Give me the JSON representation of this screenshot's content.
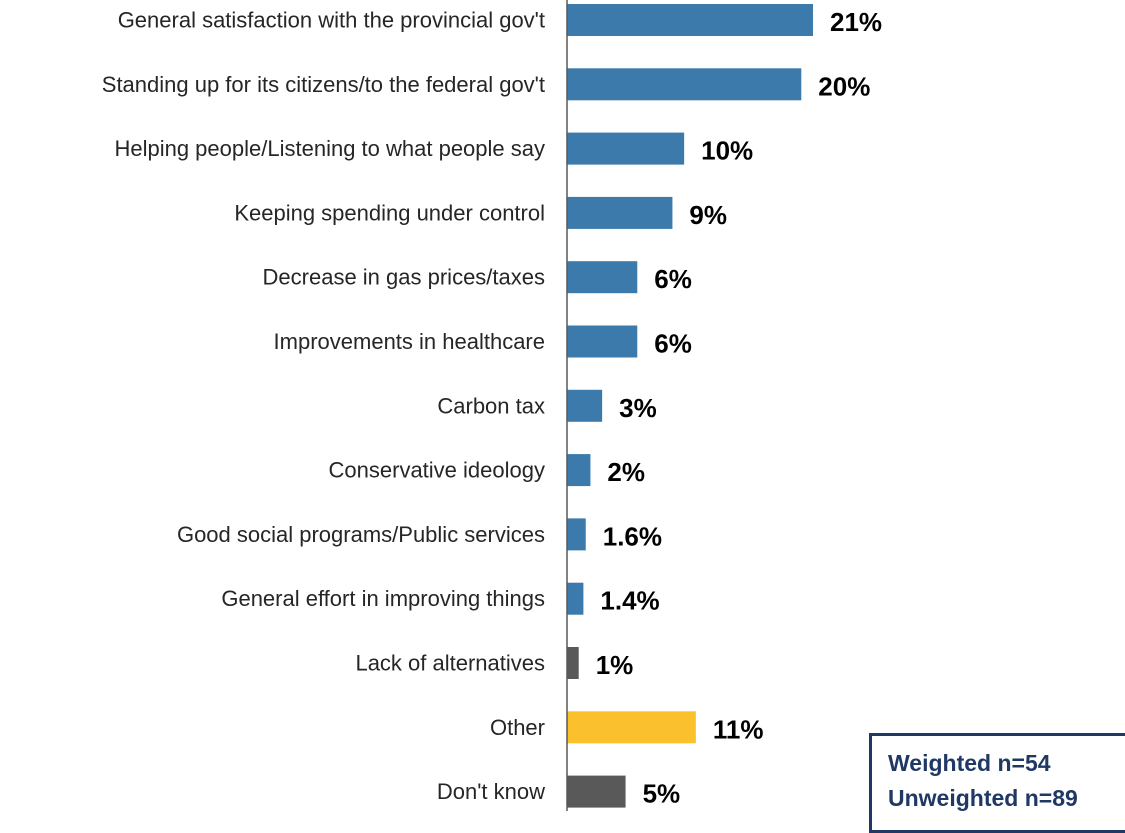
{
  "chart_data": {
    "type": "bar",
    "orientation": "horizontal",
    "categories": [
      "General satisfaction with the provincial gov't",
      "Standing up for its citizens/to the federal gov't",
      "Helping people/Listening to what people say",
      "Keeping spending under control",
      "Decrease in gas prices/taxes",
      "Improvements in healthcare",
      "Carbon tax",
      "Conservative ideology",
      "Good social programs/Public services",
      "General effort in improving things",
      "Lack of alternatives",
      "Other",
      "Don't know"
    ],
    "values": [
      21,
      20,
      10,
      9,
      6,
      6,
      3,
      2,
      1.6,
      1.4,
      1,
      11,
      5
    ],
    "value_labels": [
      "21%",
      "20%",
      "10%",
      "9%",
      "6%",
      "6%",
      "3%",
      "2%",
      "1.6%",
      "1.4%",
      "1%",
      "11%",
      "5%"
    ],
    "bar_colors": [
      "#3c7aab",
      "#3c7aab",
      "#3c7aab",
      "#3c7aab",
      "#3c7aab",
      "#3c7aab",
      "#3c7aab",
      "#3c7aab",
      "#3c7aab",
      "#3c7aab",
      "#595959",
      "#fbc02d",
      "#595959"
    ],
    "xlim": [
      0,
      21
    ],
    "unit": "%",
    "grid": false,
    "title": "",
    "xlabel": "",
    "ylabel": ""
  },
  "sample_box": {
    "weighted": "Weighted n=54",
    "unweighted": "Unweighted n=89"
  },
  "colors": {
    "axis": "#595959",
    "box_border": "#1f3864",
    "box_text": "#1f3864"
  }
}
